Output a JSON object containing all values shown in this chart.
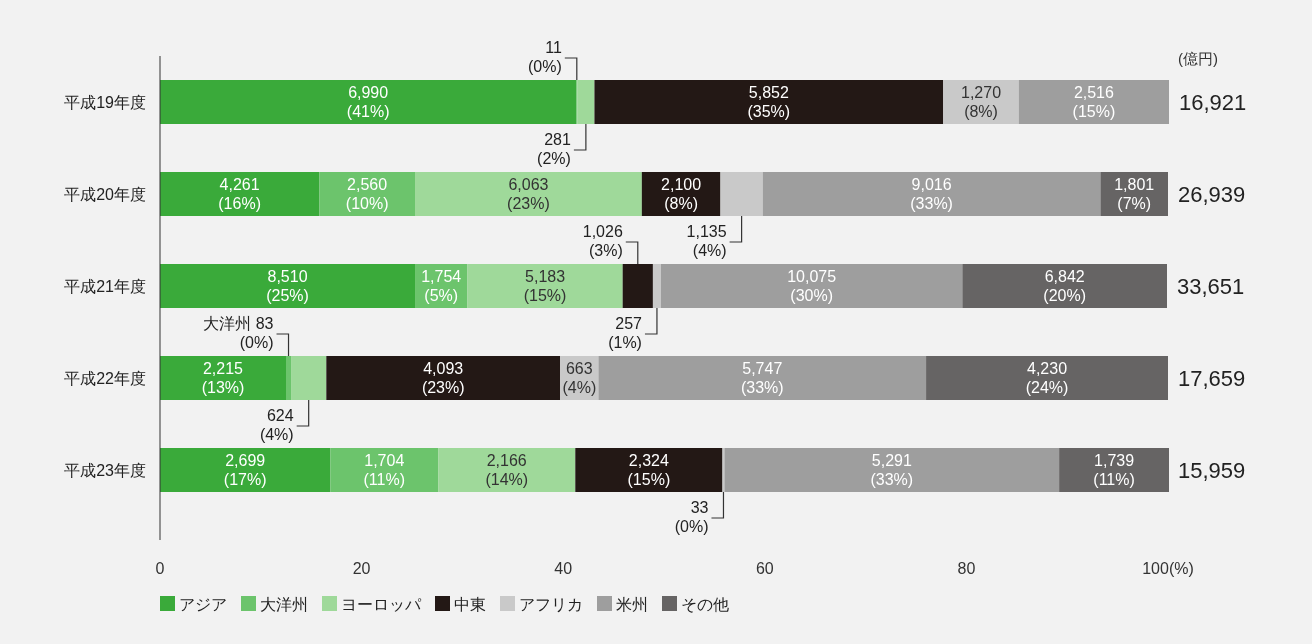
{
  "chart_data": {
    "type": "bar",
    "orientation": "horizontal",
    "stacked": true,
    "categories": [
      "平成19年度",
      "平成20年度",
      "平成21年度",
      "平成22年度",
      "平成23年度"
    ],
    "series": [
      {
        "name": "アジア",
        "color": "#3aaa3a",
        "values": [
          41.3,
          15.8,
          25.3,
          12.5,
          16.9
        ],
        "value_labels": [
          "6,990\n(41%)",
          "4,261\n(16%)",
          "8,510\n(25%)",
          "2,215\n(13%)",
          "2,699\n(17%)"
        ]
      },
      {
        "name": "大洋州",
        "color": "#6cc46c",
        "values": [
          0.1,
          9.5,
          5.2,
          0.5,
          10.7
        ],
        "value_labels": [
          "11\n(0%)",
          "2,560\n(10%)",
          "1,754\n(5%)",
          "大洋州 83\n(0%)",
          "1,704\n(11%)"
        ]
      },
      {
        "name": "ヨーロッパ",
        "color": "#9fd99a",
        "values": [
          1.7,
          22.5,
          15.4,
          3.5,
          13.6
        ],
        "value_labels": [
          "281\n(2%)",
          "6,063\n(23%)",
          "5,183\n(15%)",
          "624\n(4%)",
          "2,166\n(14%)"
        ]
      },
      {
        "name": "中東",
        "color": "#231815",
        "values": [
          34.6,
          7.8,
          3.0,
          23.2,
          14.6
        ],
        "value_labels": [
          "5,852\n(35%)",
          "2,100\n(8%)",
          "1,026\n(3%)",
          "4,093\n(23%)",
          "2,324\n(15%)"
        ]
      },
      {
        "name": "アフリカ",
        "color": "#c9c9c9",
        "values": [
          7.5,
          4.2,
          0.8,
          3.8,
          0.2
        ],
        "value_labels": [
          "1,270\n(8%)",
          "1,135\n(4%)",
          "257\n(1%)",
          "663\n(4%)",
          "33\n(0%)"
        ]
      },
      {
        "name": "米州",
        "color": "#9e9e9e",
        "values": [
          14.9,
          33.5,
          29.9,
          32.5,
          33.2
        ],
        "value_labels": [
          "2,516\n(15%)",
          "9,016\n(33%)",
          "10,075\n(30%)",
          "5,747\n(33%)",
          "5,291\n(33%)"
        ]
      },
      {
        "name": "その他",
        "color": "#666464",
        "values": [
          null,
          6.7,
          20.3,
          24.0,
          10.9
        ],
        "value_labels": [
          null,
          "1,801\n(7%)",
          "6,842\n(20%)",
          "4,230\n(24%)",
          "1,739\n(11%)"
        ]
      }
    ],
    "annotations": [
      "(億円)",
      {
        "text": "16,921",
        "x": 100.1,
        "y": "平成19年度"
      },
      {
        "text": "26,939",
        "x": 100,
        "y": "平成20年度"
      },
      {
        "text": "33,651",
        "x": 99.9,
        "y": "平成21年度"
      },
      {
        "text": "17,659",
        "x": 100,
        "y": "平成22年度"
      },
      {
        "text": "15,959",
        "x": 100,
        "y": "平成23年度"
      }
    ],
    "xlim": [
      0,
      100
    ],
    "xticks": [
      0,
      20,
      40,
      60,
      80,
      {
        "value": 100,
        "label": "100(%)"
      }
    ],
    "grid": false,
    "legend": "bottom"
  }
}
